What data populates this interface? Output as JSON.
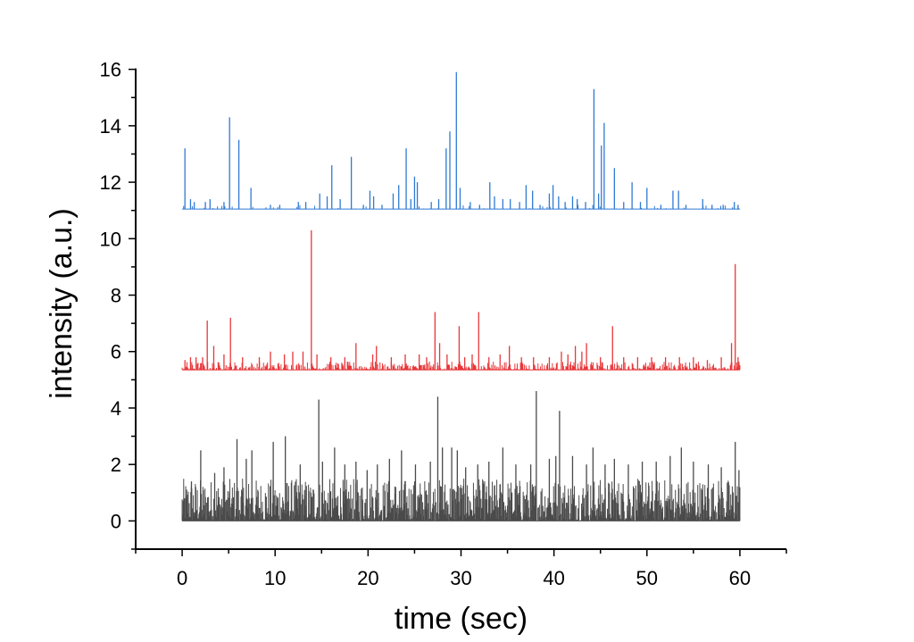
{
  "chart_data": {
    "type": "line",
    "title": "",
    "xlabel": "time (sec)",
    "ylabel": "intensity (a.u.)",
    "xlim": [
      -5,
      65
    ],
    "ylim": [
      -1,
      16.4
    ],
    "xticks": [
      0,
      10,
      20,
      30,
      40,
      50,
      60
    ],
    "yticks": [
      0,
      2,
      4,
      6,
      8,
      10,
      12,
      14,
      16
    ],
    "x_range": [
      0,
      60
    ],
    "grid": false,
    "legend": "none",
    "series": [
      {
        "color": "#4a4a4a",
        "baseline": 0,
        "noise_max": 1.5,
        "density": "dense",
        "peaks": [
          [
            1.0,
            1.4
          ],
          [
            2.0,
            2.5
          ],
          [
            3.5,
            1.7
          ],
          [
            4.5,
            1.9
          ],
          [
            5.9,
            2.9
          ],
          [
            6.9,
            2.2
          ],
          [
            7.5,
            2.5
          ],
          [
            9.8,
            2.8
          ],
          [
            11.1,
            3.0
          ],
          [
            12.7,
            2.0
          ],
          [
            14.7,
            4.3
          ],
          [
            15.1,
            2.1
          ],
          [
            16.4,
            2.6
          ],
          [
            17.5,
            2.0
          ],
          [
            18.7,
            2.1
          ],
          [
            19.9,
            1.8
          ],
          [
            21.0,
            2.0
          ],
          [
            22.3,
            2.2
          ],
          [
            23.6,
            2.5
          ],
          [
            25.1,
            2.0
          ],
          [
            26.7,
            2.1
          ],
          [
            27.5,
            4.4
          ],
          [
            28.0,
            2.6
          ],
          [
            29.0,
            2.6
          ],
          [
            29.6,
            2.5
          ],
          [
            30.5,
            1.9
          ],
          [
            31.8,
            2.0
          ],
          [
            33.0,
            2.1
          ],
          [
            34.5,
            2.6
          ],
          [
            35.9,
            2.0
          ],
          [
            37.5,
            2.0
          ],
          [
            38.1,
            4.6
          ],
          [
            39.5,
            2.2
          ],
          [
            40.2,
            2.3
          ],
          [
            40.6,
            3.9
          ],
          [
            42.0,
            2.3
          ],
          [
            43.5,
            2.0
          ],
          [
            44.2,
            2.6
          ],
          [
            45.5,
            2.0
          ],
          [
            46.5,
            2.2
          ],
          [
            48.0,
            2.0
          ],
          [
            49.5,
            2.1
          ],
          [
            51.0,
            2.1
          ],
          [
            52.5,
            2.3
          ],
          [
            53.7,
            2.6
          ],
          [
            55.0,
            2.1
          ],
          [
            56.6,
            2.0
          ],
          [
            58.0,
            1.9
          ],
          [
            59.5,
            2.8
          ],
          [
            59.9,
            1.8
          ]
        ]
      },
      {
        "color": "#e8373a",
        "baseline": 5.35,
        "noise_max": 0.3,
        "density": "medium",
        "peaks": [
          [
            0.3,
            5.7
          ],
          [
            0.9,
            5.8
          ],
          [
            1.5,
            5.8
          ],
          [
            2.2,
            5.8
          ],
          [
            2.7,
            7.1
          ],
          [
            3.4,
            6.2
          ],
          [
            4.5,
            5.9
          ],
          [
            5.2,
            7.2
          ],
          [
            6.5,
            5.8
          ],
          [
            8.3,
            5.8
          ],
          [
            9.5,
            6.0
          ],
          [
            11.0,
            5.9
          ],
          [
            11.9,
            6.0
          ],
          [
            13.0,
            6.0
          ],
          [
            13.9,
            10.3
          ],
          [
            14.5,
            5.9
          ],
          [
            16.0,
            5.8
          ],
          [
            17.5,
            5.8
          ],
          [
            18.7,
            6.3
          ],
          [
            20.5,
            5.9
          ],
          [
            20.9,
            6.2
          ],
          [
            22.5,
            5.8
          ],
          [
            24.0,
            5.9
          ],
          [
            25.5,
            5.9
          ],
          [
            26.3,
            5.8
          ],
          [
            27.2,
            7.4
          ],
          [
            27.7,
            6.3
          ],
          [
            28.5,
            5.9
          ],
          [
            29.8,
            6.9
          ],
          [
            30.4,
            5.8
          ],
          [
            31.2,
            5.9
          ],
          [
            31.9,
            7.4
          ],
          [
            33.0,
            5.8
          ],
          [
            34.2,
            5.9
          ],
          [
            35.2,
            6.2
          ],
          [
            36.5,
            5.8
          ],
          [
            37.8,
            5.8
          ],
          [
            39.5,
            5.8
          ],
          [
            40.8,
            6.0
          ],
          [
            41.5,
            5.9
          ],
          [
            42.3,
            6.2
          ],
          [
            43.0,
            6.0
          ],
          [
            43.5,
            6.3
          ],
          [
            45.0,
            5.8
          ],
          [
            46.3,
            6.9
          ],
          [
            47.5,
            5.8
          ],
          [
            49.0,
            5.8
          ],
          [
            50.5,
            5.8
          ],
          [
            52.0,
            5.8
          ],
          [
            53.5,
            5.8
          ],
          [
            55.0,
            5.8
          ],
          [
            56.5,
            5.7
          ],
          [
            58.0,
            5.8
          ],
          [
            59.1,
            6.3
          ],
          [
            59.5,
            9.1
          ],
          [
            59.8,
            5.8
          ]
        ]
      },
      {
        "color": "#2f7ad3",
        "baseline": 11.05,
        "noise_max": 0.15,
        "density": "sparse",
        "peaks": [
          [
            0.3,
            13.2
          ],
          [
            0.9,
            11.4
          ],
          [
            1.3,
            11.3
          ],
          [
            2.5,
            11.3
          ],
          [
            3.0,
            11.4
          ],
          [
            4.5,
            11.3
          ],
          [
            5.1,
            14.3
          ],
          [
            6.1,
            13.5
          ],
          [
            7.4,
            11.8
          ],
          [
            9.5,
            11.2
          ],
          [
            10.5,
            11.2
          ],
          [
            12.5,
            11.3
          ],
          [
            13.3,
            11.3
          ],
          [
            14.8,
            11.6
          ],
          [
            15.6,
            11.5
          ],
          [
            16.1,
            12.6
          ],
          [
            17.0,
            11.4
          ],
          [
            18.2,
            12.9
          ],
          [
            19.5,
            11.2
          ],
          [
            20.2,
            11.7
          ],
          [
            20.6,
            11.5
          ],
          [
            21.5,
            11.2
          ],
          [
            22.7,
            11.6
          ],
          [
            23.3,
            11.9
          ],
          [
            24.1,
            13.2
          ],
          [
            24.6,
            11.4
          ],
          [
            25.0,
            12.2
          ],
          [
            25.3,
            12.0
          ],
          [
            26.8,
            11.3
          ],
          [
            27.6,
            11.4
          ],
          [
            28.4,
            13.2
          ],
          [
            28.8,
            13.8
          ],
          [
            29.5,
            15.9
          ],
          [
            29.9,
            11.8
          ],
          [
            31.0,
            11.3
          ],
          [
            32.0,
            11.2
          ],
          [
            33.1,
            12.0
          ],
          [
            33.6,
            11.5
          ],
          [
            34.5,
            11.4
          ],
          [
            35.3,
            11.4
          ],
          [
            36.3,
            11.3
          ],
          [
            37.0,
            11.9
          ],
          [
            37.7,
            11.7
          ],
          [
            38.5,
            11.2
          ],
          [
            39.5,
            11.6
          ],
          [
            39.9,
            11.9
          ],
          [
            40.5,
            11.5
          ],
          [
            41.2,
            11.3
          ],
          [
            42.0,
            11.5
          ],
          [
            42.5,
            11.4
          ],
          [
            43.4,
            11.3
          ],
          [
            44.3,
            15.3
          ],
          [
            44.8,
            11.6
          ],
          [
            45.1,
            13.3
          ],
          [
            45.4,
            14.1
          ],
          [
            46.5,
            12.5
          ],
          [
            47.5,
            11.3
          ],
          [
            48.4,
            12.0
          ],
          [
            49.3,
            11.3
          ],
          [
            50.0,
            11.8
          ],
          [
            51.5,
            11.2
          ],
          [
            52.8,
            11.7
          ],
          [
            53.4,
            11.7
          ],
          [
            54.2,
            11.2
          ],
          [
            56.0,
            11.4
          ],
          [
            57.0,
            11.2
          ],
          [
            58.2,
            11.2
          ],
          [
            59.4,
            11.3
          ],
          [
            59.8,
            11.2
          ]
        ]
      }
    ]
  }
}
